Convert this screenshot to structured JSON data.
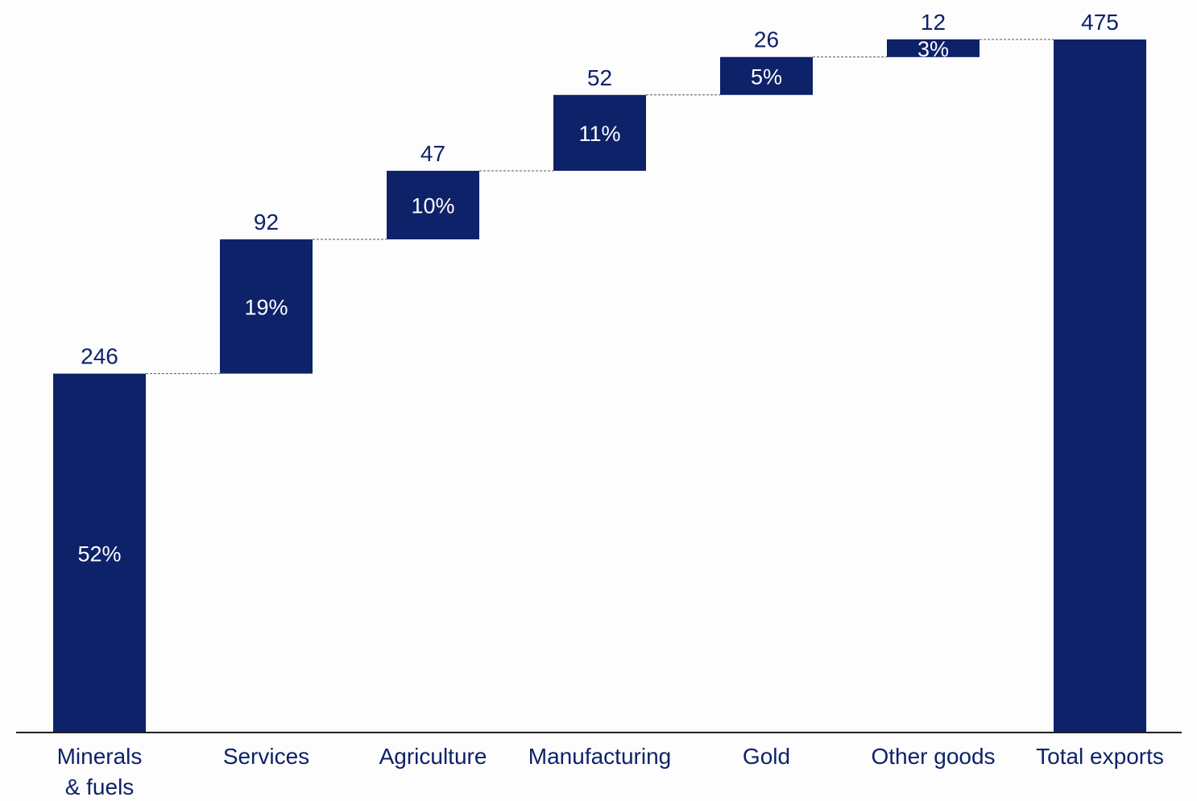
{
  "chart_data": {
    "type": "bar",
    "subtype": "waterfall",
    "categories": [
      [
        "Minerals",
        "& fuels"
      ],
      [
        "Services"
      ],
      [
        "Agriculture"
      ],
      [
        "Manufacturing"
      ],
      [
        "Gold"
      ],
      [
        "Other goods"
      ],
      [
        "Total exports"
      ]
    ],
    "values": [
      246,
      92,
      47,
      52,
      26,
      12,
      475
    ],
    "value_labels": [
      "246",
      "92",
      "47",
      "52",
      "26",
      "12",
      "475"
    ],
    "share_labels": [
      "52%",
      "19%",
      "10%",
      "11%",
      "5%",
      "3%",
      ""
    ],
    "is_total": [
      false,
      false,
      false,
      false,
      false,
      false,
      true
    ],
    "ylim": [
      0,
      475
    ],
    "grid": false,
    "legend": "none"
  },
  "colors": {
    "bar": "#0d2269",
    "value_text": "#0d2269",
    "share_text": "#ffffff",
    "category_text": "#0d2269",
    "axis": "#222222",
    "connector": "#555555",
    "background": "#fdfdfd"
  }
}
